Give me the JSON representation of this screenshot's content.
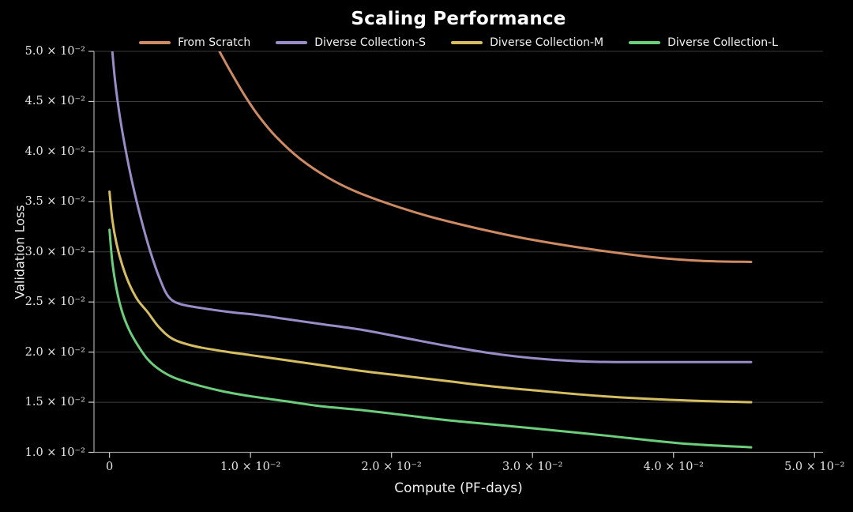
{
  "page": {
    "background": "#000000"
  },
  "chart_data": {
    "type": "line",
    "title": "Scaling Performance",
    "xlabel": "Compute (PF-days)",
    "ylabel": "Validation Loss",
    "xlim": [
      -0.0011,
      0.0506
    ],
    "ylim": [
      0.01,
      0.05
    ],
    "grid": "horizontal-only",
    "legend_position": "top-center",
    "colors": {
      "background": "#000000",
      "title_text": "#ffffff",
      "label_text": "#f0f0f0",
      "tick_text": "#e6e6e6",
      "gridline": "#3c3c3c",
      "spine": "#9a9a9a",
      "tick_mark": "#cccccc"
    },
    "xticks": [
      {
        "value": 0.0,
        "label": "0"
      },
      {
        "value": 0.01,
        "label": "1.0 × 10⁻²"
      },
      {
        "value": 0.02,
        "label": "2.0 × 10⁻²"
      },
      {
        "value": 0.03,
        "label": "3.0 × 10⁻²"
      },
      {
        "value": 0.04,
        "label": "4.0 × 10⁻²"
      },
      {
        "value": 0.05,
        "label": "5.0 × 10⁻²"
      }
    ],
    "yticks": [
      {
        "value": 0.01,
        "label": "1.0 × 10⁻²"
      },
      {
        "value": 0.015,
        "label": "1.5 × 10⁻²"
      },
      {
        "value": 0.02,
        "label": "2.0 × 10⁻²"
      },
      {
        "value": 0.025,
        "label": "2.5 × 10⁻²"
      },
      {
        "value": 0.03,
        "label": "3.0 × 10⁻²"
      },
      {
        "value": 0.035,
        "label": "3.5 × 10⁻²"
      },
      {
        "value": 0.04,
        "label": "4.0 × 10⁻²"
      },
      {
        "value": 0.045,
        "label": "4.5 × 10⁻²"
      },
      {
        "value": 0.05,
        "label": "5.0 × 10⁻²"
      }
    ],
    "series": [
      {
        "name": "From Scratch",
        "color": "#cd8a63",
        "x": [
          0.0078,
          0.0085,
          0.0095,
          0.0105,
          0.0118,
          0.0135,
          0.0155,
          0.0175,
          0.02,
          0.0225,
          0.025,
          0.0275,
          0.03,
          0.033,
          0.036,
          0.039,
          0.042,
          0.0455
        ],
        "y": [
          0.05,
          0.0482,
          0.0458,
          0.0437,
          0.0415,
          0.0393,
          0.0374,
          0.036,
          0.0347,
          0.0336,
          0.0327,
          0.0319,
          0.0312,
          0.0305,
          0.0299,
          0.0294,
          0.0291,
          0.029
        ]
      },
      {
        "name": "Diverse Collection-S",
        "color": "#9a8cc6",
        "x": [
          0.0002,
          0.0004,
          0.0007,
          0.0011,
          0.0016,
          0.0022,
          0.0029,
          0.0036,
          0.0042,
          0.005,
          0.0065,
          0.0085,
          0.0105,
          0.0125,
          0.015,
          0.018,
          0.021,
          0.024,
          0.027,
          0.03,
          0.033,
          0.036,
          0.04,
          0.0455
        ],
        "y": [
          0.05,
          0.047,
          0.0438,
          0.0405,
          0.037,
          0.0335,
          0.03,
          0.0272,
          0.0255,
          0.0248,
          0.0244,
          0.024,
          0.0237,
          0.0233,
          0.0228,
          0.0222,
          0.0214,
          0.0206,
          0.0199,
          0.0194,
          0.0191,
          0.019,
          0.019,
          0.019
        ]
      },
      {
        "name": "Diverse Collection-M",
        "color": "#d5bd62",
        "x": [
          0.0,
          0.0002,
          0.0005,
          0.0009,
          0.0014,
          0.002,
          0.0027,
          0.0035,
          0.0045,
          0.006,
          0.008,
          0.01,
          0.0125,
          0.015,
          0.018,
          0.021,
          0.024,
          0.027,
          0.03,
          0.035,
          0.0405,
          0.0455
        ],
        "y": [
          0.036,
          0.0332,
          0.0308,
          0.0287,
          0.0268,
          0.0252,
          0.024,
          0.0225,
          0.0213,
          0.0206,
          0.0201,
          0.0197,
          0.0192,
          0.0187,
          0.0181,
          0.0176,
          0.0171,
          0.0166,
          0.0162,
          0.0156,
          0.0152,
          0.015
        ]
      },
      {
        "name": "Diverse Collection-L",
        "color": "#6ccd7c",
        "x": [
          0.0,
          0.0002,
          0.0005,
          0.0009,
          0.0014,
          0.002,
          0.0027,
          0.0035,
          0.0045,
          0.006,
          0.008,
          0.01,
          0.0125,
          0.015,
          0.018,
          0.021,
          0.024,
          0.027,
          0.03,
          0.035,
          0.0405,
          0.0455
        ],
        "y": [
          0.0322,
          0.029,
          0.0263,
          0.024,
          0.0222,
          0.0207,
          0.0193,
          0.0183,
          0.0175,
          0.0168,
          0.0161,
          0.0156,
          0.0151,
          0.0146,
          0.0142,
          0.0137,
          0.0132,
          0.0128,
          0.0124,
          0.0117,
          0.0109,
          0.0105
        ]
      }
    ]
  }
}
